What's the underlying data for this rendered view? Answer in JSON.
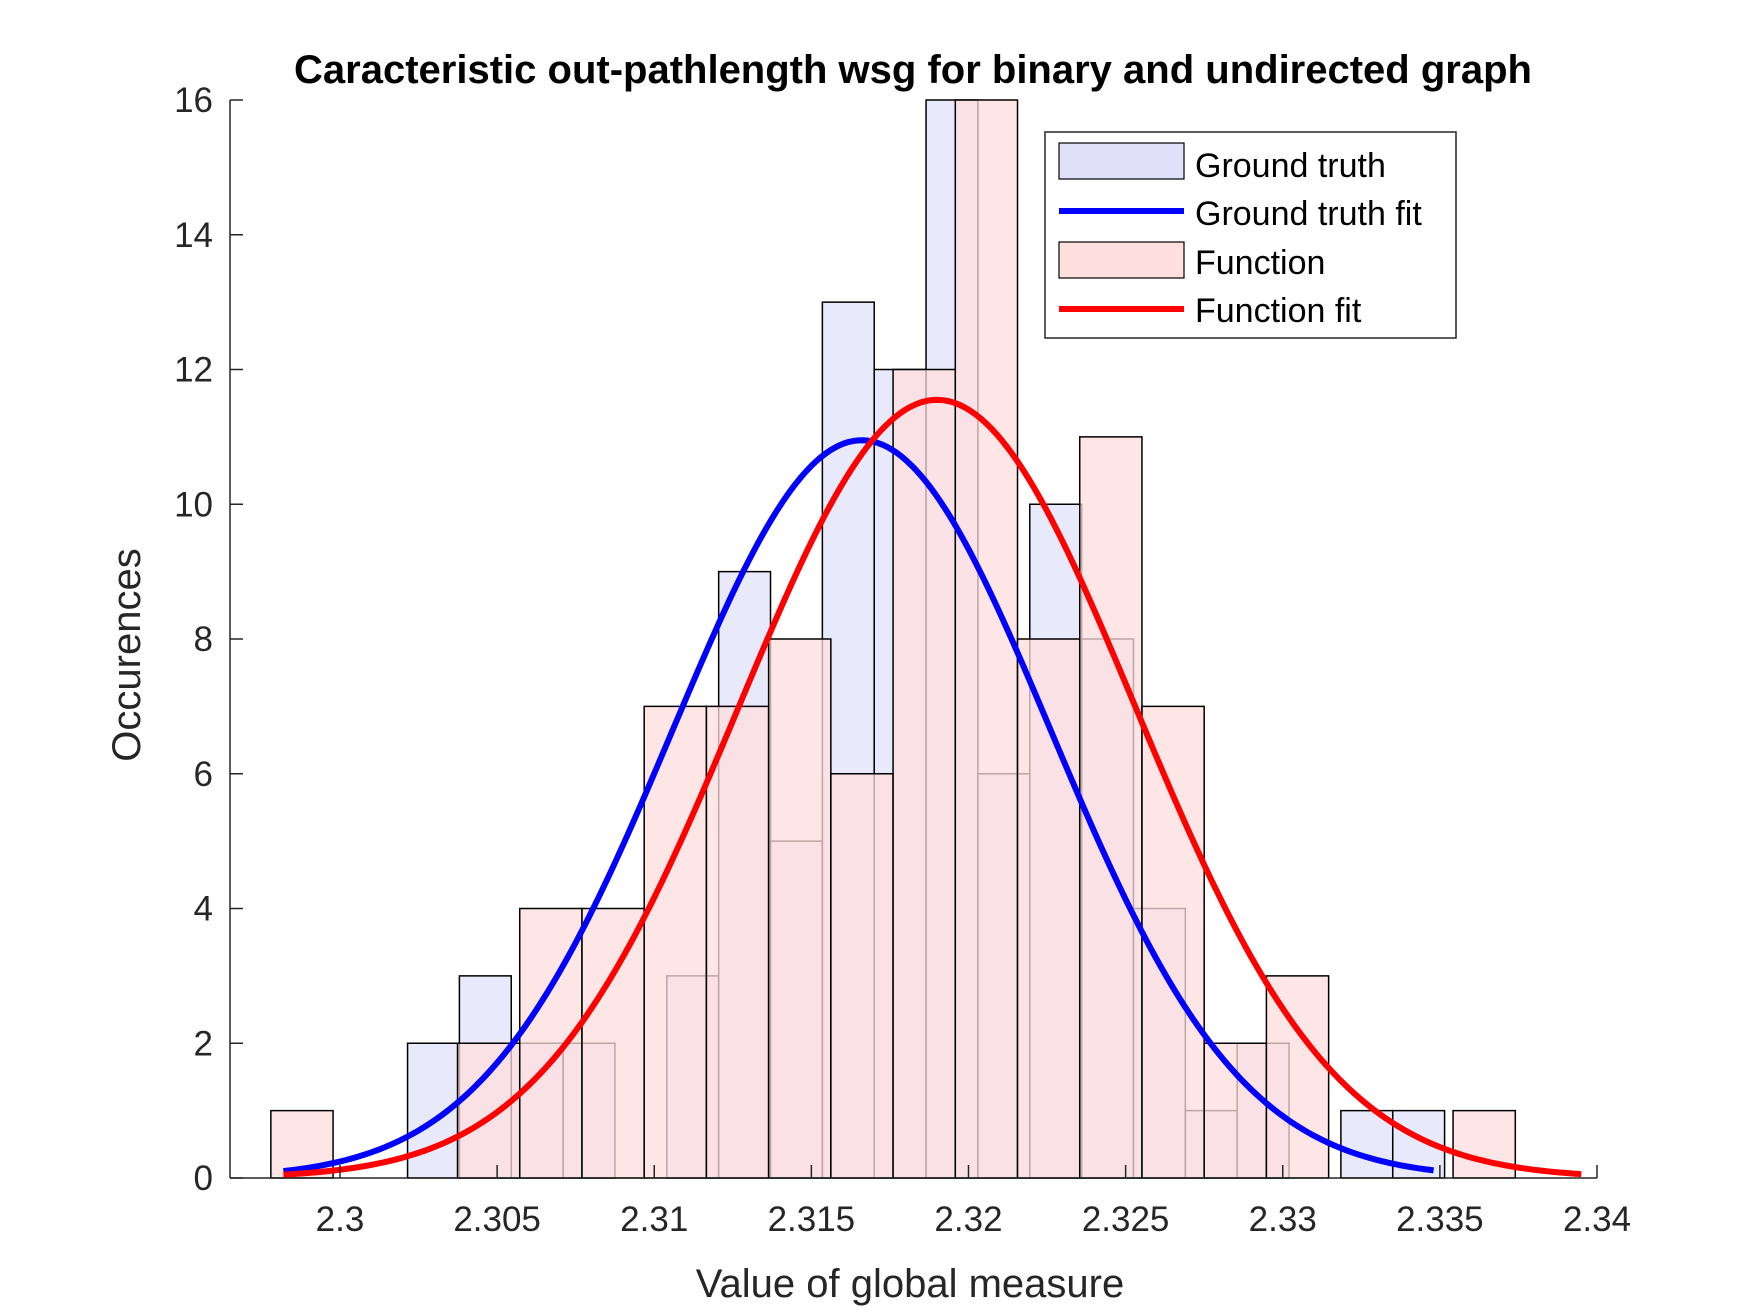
{
  "chart_data": {
    "type": "bar",
    "title": "Caracteristic out-pathlength wsg for binary and undirected graph",
    "xlabel": "Value of global measure",
    "ylabel": "Occurences",
    "xlim": [
      2.2965,
      2.34
    ],
    "ylim": [
      0,
      16
    ],
    "xticks": [
      "2.3",
      "2.305",
      "2.31",
      "2.315",
      "2.32",
      "2.325",
      "2.33",
      "2.335",
      "2.34"
    ],
    "xtick_values": [
      2.3,
      2.305,
      2.31,
      2.315,
      2.32,
      2.325,
      2.33,
      2.335,
      2.34
    ],
    "yticks": [
      "0",
      "2",
      "4",
      "6",
      "8",
      "10",
      "12",
      "14",
      "16"
    ],
    "ytick_values": [
      0,
      2,
      4,
      6,
      8,
      10,
      12,
      14,
      16
    ],
    "grid": false,
    "legend_position": "top-right",
    "legend": [
      "Ground truth",
      "Ground truth fit",
      "Function",
      "Function fit"
    ],
    "series": [
      {
        "name": "Ground truth",
        "kind": "histogram",
        "color": "#E0E1F8",
        "edges": [
          2.30215,
          2.3038,
          2.30545,
          2.3071,
          2.30875,
          2.3104,
          2.31205,
          2.3137,
          2.31535,
          2.317,
          2.31865,
          2.3203,
          2.32195,
          2.3236,
          2.32525,
          2.3269,
          2.32855,
          2.3302,
          2.33185,
          2.3335,
          2.33515
        ],
        "values": [
          2,
          3,
          2,
          2,
          0,
          3,
          9,
          5,
          13,
          12,
          16,
          6,
          10,
          8,
          4,
          1,
          2,
          0,
          1,
          1
        ]
      },
      {
        "name": "Ground truth fit",
        "kind": "line",
        "color": "#0000FF",
        "mu": 2.3166,
        "sigma": 0.00602,
        "peak": 10.95,
        "range": [
          2.2982,
          2.3348
        ]
      },
      {
        "name": "Function",
        "kind": "histogram",
        "color": "#FFDEDE",
        "edges": [
          2.2978,
          2.29978,
          2.30176,
          2.30374,
          2.30572,
          2.3077,
          2.30968,
          2.31166,
          2.31364,
          2.31562,
          2.3176,
          2.31958,
          2.32156,
          2.32354,
          2.32552,
          2.3275,
          2.32948,
          2.33146,
          2.33344,
          2.33542,
          2.3374
        ],
        "values": [
          1,
          0,
          0,
          2,
          4,
          4,
          7,
          7,
          8,
          6,
          12,
          16,
          8,
          11,
          7,
          2,
          3,
          0,
          0,
          1
        ]
      },
      {
        "name": "Function fit",
        "kind": "line",
        "color": "#FF0000",
        "mu": 2.319,
        "sigma": 0.0063,
        "peak": 11.55,
        "range": [
          2.2982,
          2.3395
        ]
      }
    ]
  }
}
